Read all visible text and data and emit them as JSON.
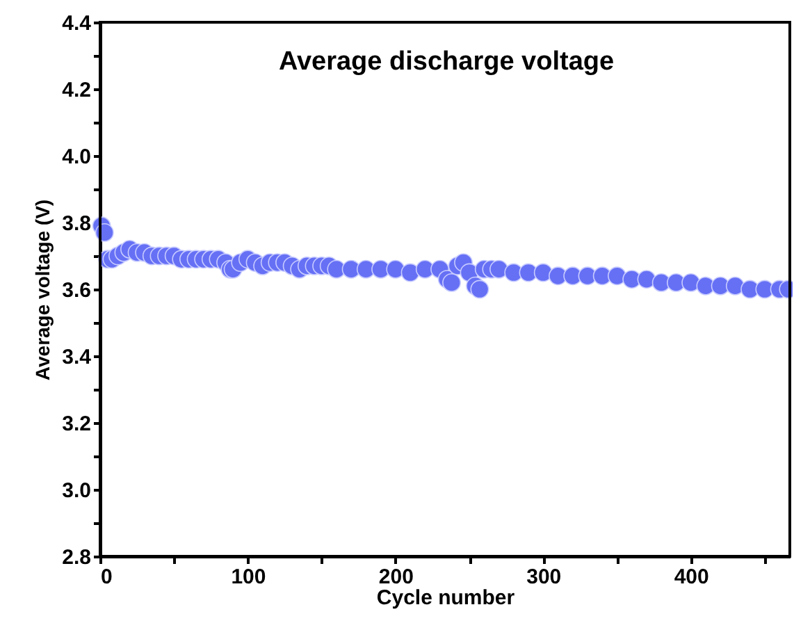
{
  "chart_data": {
    "type": "scatter",
    "title": "Average discharge voltage",
    "xlabel": "Cycle number",
    "ylabel": "Average voltage (V)",
    "xlim": [
      0,
      467
    ],
    "ylim": [
      2.8,
      4.4
    ],
    "xticks": [
      0,
      {
        "value": 50,
        "label": null
      },
      100,
      {
        "value": 150,
        "label": null
      },
      200,
      {
        "value": 250,
        "label": null
      },
      300,
      {
        "value": 350,
        "label": null
      },
      400,
      {
        "value": 450,
        "label": null
      }
    ],
    "yticks": [
      2.8,
      {
        "value": 2.9,
        "label": null
      },
      {
        "value": 3.0,
        "label": "3.0"
      },
      {
        "value": 3.1,
        "label": null
      },
      3.2,
      {
        "value": 3.3,
        "label": null
      },
      3.4,
      {
        "value": 3.5,
        "label": null
      },
      3.6,
      {
        "value": 3.7,
        "label": null
      },
      3.8,
      {
        "value": 3.9,
        "label": null
      },
      {
        "value": 4.0,
        "label": "4.0"
      },
      {
        "value": 4.1,
        "label": null
      },
      4.2,
      {
        "value": 4.3,
        "label": null
      },
      4.4
    ],
    "marker": "circle",
    "grid": false,
    "series": [
      {
        "color": "#6670f5",
        "x": [
          1,
          3,
          5,
          8,
          12,
          16,
          20,
          25,
          30,
          35,
          40,
          45,
          50,
          55,
          60,
          65,
          70,
          75,
          80,
          85,
          88,
          90,
          95,
          100,
          105,
          110,
          115,
          120,
          125,
          130,
          135,
          140,
          145,
          150,
          155,
          160,
          170,
          180,
          190,
          200,
          210,
          220,
          230,
          235,
          238,
          242,
          246,
          250,
          254,
          257,
          260,
          265,
          270,
          280,
          290,
          300,
          310,
          320,
          330,
          340,
          350,
          360,
          370,
          380,
          390,
          400,
          410,
          420,
          430,
          440,
          450,
          460,
          466
        ],
        "values": [
          3.79,
          3.77,
          3.69,
          3.69,
          3.7,
          3.71,
          3.72,
          3.71,
          3.71,
          3.7,
          3.7,
          3.7,
          3.7,
          3.69,
          3.69,
          3.69,
          3.69,
          3.69,
          3.69,
          3.68,
          3.66,
          3.66,
          3.68,
          3.69,
          3.68,
          3.67,
          3.68,
          3.68,
          3.68,
          3.67,
          3.66,
          3.67,
          3.67,
          3.67,
          3.67,
          3.66,
          3.66,
          3.66,
          3.66,
          3.66,
          3.65,
          3.66,
          3.66,
          3.63,
          3.62,
          3.67,
          3.68,
          3.65,
          3.61,
          3.6,
          3.66,
          3.66,
          3.66,
          3.65,
          3.65,
          3.65,
          3.64,
          3.64,
          3.64,
          3.64,
          3.64,
          3.63,
          3.63,
          3.62,
          3.62,
          3.62,
          3.61,
          3.61,
          3.61,
          3.6,
          3.6,
          3.6,
          3.6
        ]
      }
    ]
  }
}
